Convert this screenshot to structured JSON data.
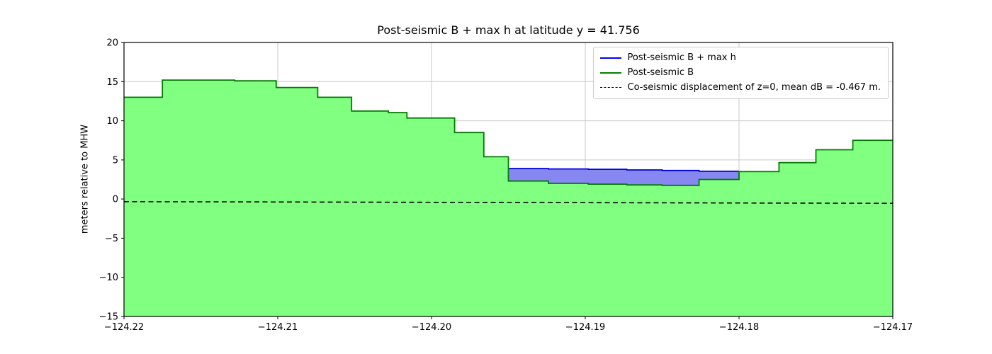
{
  "figure": {
    "title": "Post-seismic B + max h at latitude y = 41.756",
    "ylabel": "meters relative to MHW"
  },
  "legend": {
    "entries": [
      {
        "label": "Post-seismic B + max h",
        "color": "#0000ff",
        "dash": false
      },
      {
        "label": "Post-seismic B",
        "color": "#008000",
        "dash": false
      },
      {
        "label": "Co-seismic displacement of z=0, mean dB = -0.467 m.",
        "color": "#000000",
        "dash": true
      }
    ]
  },
  "chart_data": {
    "type": "area",
    "title": "Post-seismic B + max h at latitude y = 41.756",
    "xlabel": "",
    "ylabel": "meters relative to MHW",
    "xlim": [
      -124.22,
      -124.17
    ],
    "ylim": [
      -15,
      20
    ],
    "xticks": [
      -124.22,
      -124.21,
      -124.2,
      -124.19,
      -124.18,
      -124.17
    ],
    "yticks": [
      -15,
      -10,
      -5,
      0,
      5,
      10,
      15,
      20
    ],
    "grid": true,
    "legend_position": "upper right",
    "colors": {
      "B_fill": "#80ff80",
      "B_edge": "#057a05",
      "h_fill": "#8787f2",
      "h_edge": "#0000dd",
      "coseismic": "#000000",
      "grid": "#c9c9c9",
      "frame": "#000000"
    },
    "series": {
      "B_steps": [
        {
          "x0": -124.22,
          "x1": -124.2175,
          "B": 13.0,
          "top": null
        },
        {
          "x0": -124.2175,
          "x1": -124.2128,
          "B": 15.2,
          "top": null
        },
        {
          "x0": -124.2128,
          "x1": -124.2101,
          "B": 15.1,
          "top": null
        },
        {
          "x0": -124.2101,
          "x1": -124.2074,
          "B": 14.25,
          "top": null
        },
        {
          "x0": -124.2074,
          "x1": -124.2052,
          "B": 13.0,
          "top": null
        },
        {
          "x0": -124.2052,
          "x1": -124.2028,
          "B": 11.25,
          "top": null
        },
        {
          "x0": -124.2028,
          "x1": -124.2016,
          "B": 11.05,
          "top": null
        },
        {
          "x0": -124.2016,
          "x1": -124.1985,
          "B": 10.35,
          "top": null
        },
        {
          "x0": -124.1985,
          "x1": -124.1966,
          "B": 8.5,
          "top": null
        },
        {
          "x0": -124.1966,
          "x1": -124.195,
          "B": 5.4,
          "top": null
        },
        {
          "x0": -124.195,
          "x1": -124.1924,
          "B": 2.3,
          "top": 3.9
        },
        {
          "x0": -124.1924,
          "x1": -124.1898,
          "B": 2.0,
          "top": 3.85
        },
        {
          "x0": -124.1898,
          "x1": -124.1873,
          "B": 1.9,
          "top": 3.8
        },
        {
          "x0": -124.1873,
          "x1": -124.185,
          "B": 1.8,
          "top": 3.72
        },
        {
          "x0": -124.185,
          "x1": -124.1826,
          "B": 1.75,
          "top": 3.65
        },
        {
          "x0": -124.1826,
          "x1": -124.18,
          "B": 2.5,
          "top": 3.55
        },
        {
          "x0": -124.18,
          "x1": -124.1774,
          "B": 3.5,
          "top": null
        },
        {
          "x0": -124.1774,
          "x1": -124.175,
          "B": 4.65,
          "top": null
        },
        {
          "x0": -124.175,
          "x1": -124.1726,
          "B": 6.3,
          "top": null
        },
        {
          "x0": -124.1726,
          "x1": -124.17,
          "B": 7.5,
          "top": null
        }
      ],
      "coseismic_displacement": {
        "x": [
          -124.22,
          -124.17
        ],
        "y": [
          -0.33,
          -0.55
        ],
        "mean_dB": -0.467
      }
    }
  }
}
